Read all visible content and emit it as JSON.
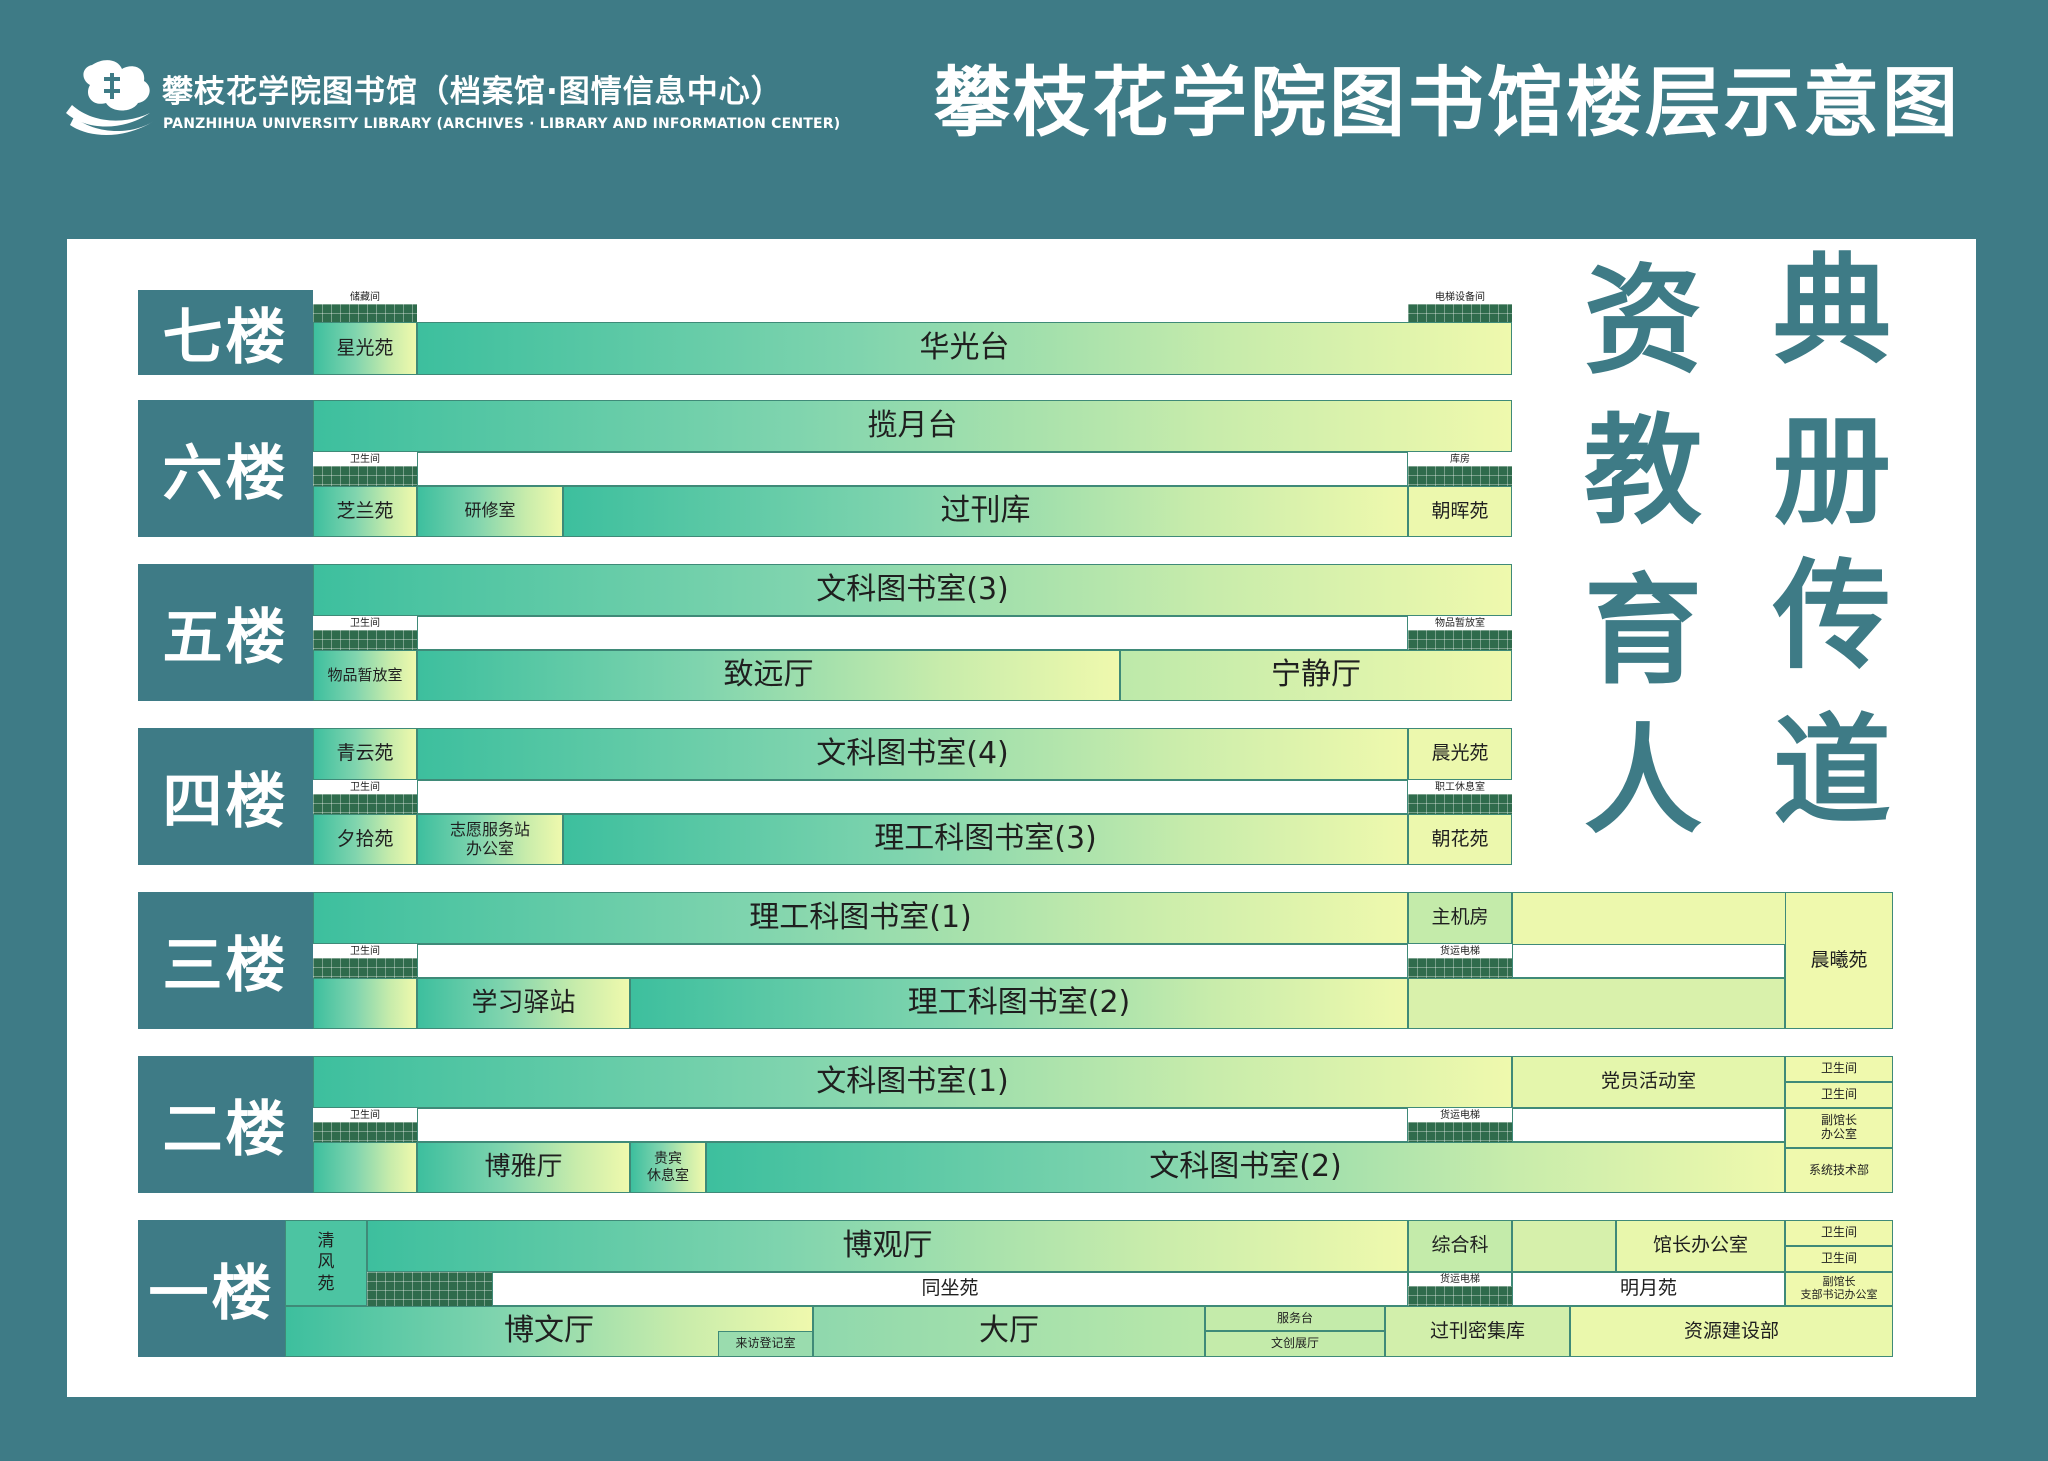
{
  "header": {
    "logo_cn": "攀枝花学院图书馆（档案馆·图情信息中心）",
    "logo_en": "PANZHIHUA UNIVERSITY LIBRARY (ARCHIVES · LIBRARY AND INFORMATION CENTER)",
    "title": "攀枝花学院图书馆楼层示意图"
  },
  "motto": {
    "col1": [
      "资",
      "教",
      "育",
      "人"
    ],
    "col2": [
      "典",
      "册",
      "传",
      "道"
    ]
  },
  "colors": {
    "teal": "#3e7b86",
    "gradient_start": "#3dbf9e",
    "gradient_end": "#eff9ad",
    "grid": "#2f6b4c"
  },
  "floors": {
    "f7": {
      "label": "七楼",
      "storage": "储藏间",
      "elevator_equipment": "电梯设备间",
      "xingguang": "星光苑",
      "huaguang": "华光台"
    },
    "f6": {
      "label": "六楼",
      "lanyue": "揽月台",
      "toilet": "卫生间",
      "store": "库房",
      "zhilan": "芝兰苑",
      "yanxiu": "研修室",
      "guokan": "过刊库",
      "zhaohui": "朝晖苑"
    },
    "f5": {
      "label": "五楼",
      "wenke3": "文科图书室(3)",
      "toilet": "卫生间",
      "item_store_cap": "物品暂放室",
      "item_store": "物品暂放室",
      "zhiyuan": "致远厅",
      "ningjing": "宁静厅"
    },
    "f4": {
      "label": "四楼",
      "qingyun": "青云苑",
      "wenke4": "文科图书室(4)",
      "chenguang": "晨光苑",
      "toilet": "卫生间",
      "staff_rest": "职工休息室",
      "xishi": "夕拾苑",
      "volunteer": "志愿服务站\n办公室",
      "ligong3": "理工科图书室(3)",
      "zhaohua": "朝花苑"
    },
    "f3": {
      "label": "三楼",
      "ligong1": "理工科图书室(1)",
      "server": "主机房",
      "toilet": "卫生间",
      "freight": "货运电梯",
      "xuexi": "学习驿站",
      "ligong2": "理工科图书室(2)",
      "chenxi": "晨曦苑"
    },
    "f2": {
      "label": "二楼",
      "wenke1": "文科图书室(1)",
      "party": "党员活动室",
      "toilet1": "卫生间",
      "toilet2": "卫生间",
      "toilet": "卫生间",
      "freight": "货运电梯",
      "vice_office": "副馆长\n办公室",
      "boya": "博雅厅",
      "vip": "贵宾\n休息室",
      "wenke2": "文科图书室(2)",
      "tech": "系统技术部"
    },
    "f1": {
      "label": "一楼",
      "qingfeng": "清\n风\n苑",
      "boguan": "博观厅",
      "general": "综合科",
      "director": "馆长办公室",
      "toilet1": "卫生间",
      "toilet2": "卫生间",
      "tongzuo": "同坐苑",
      "freight": "货运电梯",
      "mingyue": "明月苑",
      "vice_office": "副馆长\n支部书记办公室",
      "bowen": "博文厅",
      "visitor": "来访登记室",
      "hall": "大厅",
      "service": "服务台",
      "culture": "文创展厅",
      "periodical": "过刊密集库",
      "resource": "资源建设部"
    }
  }
}
